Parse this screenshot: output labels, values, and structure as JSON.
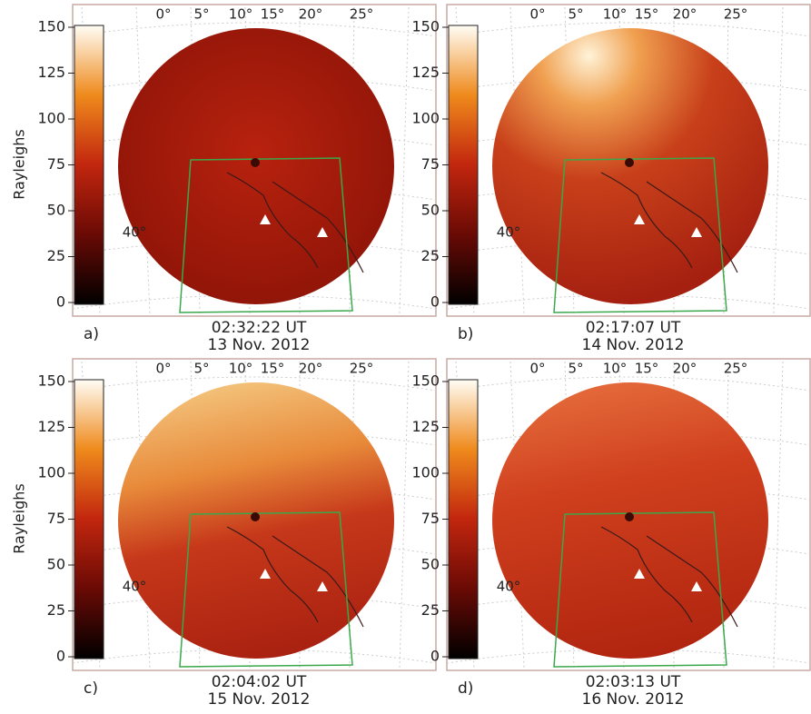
{
  "colorbar": {
    "label": "Rayleighs",
    "lim": [
      0,
      150
    ],
    "ticks": [
      0,
      25,
      50,
      75,
      100,
      125,
      150
    ]
  },
  "map_labels": {
    "longitudes": [
      "0°",
      "5°",
      "10°",
      "15°",
      "20°",
      "25°"
    ],
    "latitude": "40°"
  },
  "panels": [
    {
      "label": "a)",
      "time": "02:32:22 UT",
      "date": "13 Nov. 2012"
    },
    {
      "label": "b)",
      "time": "02:17:07 UT",
      "date": "14 Nov. 2012"
    },
    {
      "label": "c)",
      "time": "02:04:02 UT",
      "date": "15 Nov. 2012"
    },
    {
      "label": "d)",
      "time": "02:03:13 UT",
      "date": "16 Nov. 2012"
    }
  ]
}
